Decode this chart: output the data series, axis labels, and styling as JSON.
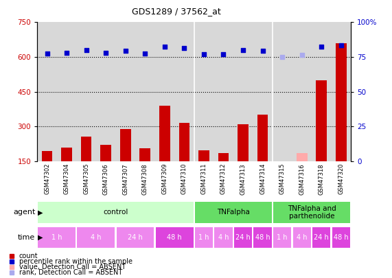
{
  "title": "GDS1289 / 37562_at",
  "samples": [
    "GSM47302",
    "GSM47304",
    "GSM47305",
    "GSM47306",
    "GSM47307",
    "GSM47308",
    "GSM47309",
    "GSM47310",
    "GSM47311",
    "GSM47312",
    "GSM47313",
    "GSM47314",
    "GSM47315",
    "GSM47316",
    "GSM47318",
    "GSM47320"
  ],
  "counts": [
    195,
    210,
    255,
    220,
    290,
    205,
    390,
    315,
    198,
    185,
    310,
    350,
    null,
    null,
    500,
    660
  ],
  "counts_absent": [
    null,
    null,
    null,
    null,
    null,
    null,
    null,
    null,
    null,
    null,
    null,
    null,
    130,
    185,
    null,
    null
  ],
  "percentile_ranks": [
    615,
    618,
    630,
    618,
    628,
    615,
    645,
    638,
    613,
    612,
    630,
    628,
    null,
    null,
    645,
    650
  ],
  "percentile_ranks_absent": [
    null,
    null,
    null,
    null,
    null,
    null,
    null,
    null,
    null,
    null,
    null,
    null,
    600,
    608,
    null,
    null
  ],
  "bar_color": "#cc0000",
  "bar_absent_color": "#ffaaaa",
  "rank_color": "#0000cc",
  "rank_absent_color": "#aaaaee",
  "agent_groups": [
    {
      "label": "control",
      "start": 0,
      "end": 8,
      "color": "#ccffcc"
    },
    {
      "label": "TNFalpha",
      "start": 8,
      "end": 12,
      "color": "#66dd66"
    },
    {
      "label": "TNFalpha and\nparthenolide",
      "start": 12,
      "end": 16,
      "color": "#66dd66"
    }
  ],
  "time_labels": [
    "1 h",
    "4 h",
    "24 h",
    "48 h",
    "1 h",
    "4 h",
    "24 h",
    "48 h",
    "1 h",
    "4 h",
    "24 h",
    "48 h"
  ],
  "time_colors": [
    "#ee88ee",
    "#ee88ee",
    "#ee88ee",
    "#dd44dd",
    "#ee88ee",
    "#ee88ee",
    "#dd44dd",
    "#dd44dd",
    "#ee88ee",
    "#ee88ee",
    "#dd44dd",
    "#dd44dd"
  ],
  "ylim_left": [
    150,
    750
  ],
  "ylim_right": [
    0,
    100
  ],
  "yticks_left": [
    150,
    300,
    450,
    600,
    750
  ],
  "yticks_right": [
    0,
    25,
    50,
    75,
    100
  ],
  "background_color": "#ffffff",
  "plot_bg": "#d8d8d8"
}
